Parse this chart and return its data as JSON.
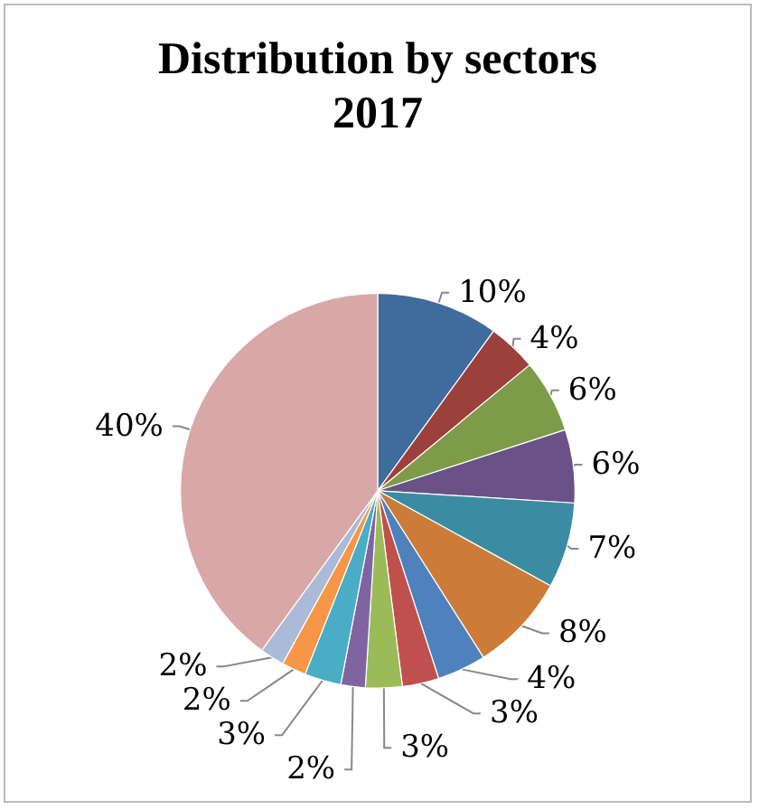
{
  "chart_data": {
    "type": "pie",
    "title": "Distribution by sectors\n2017",
    "categories": [
      null,
      null,
      null,
      null,
      null,
      null,
      null,
      null,
      null,
      null,
      null,
      null,
      null,
      null
    ],
    "values": [
      10,
      4,
      6,
      6,
      7,
      8,
      4,
      3,
      3,
      2,
      3,
      2,
      2,
      40
    ],
    "colors": [
      "#3f6b9d",
      "#9c403c",
      "#7e9b4a",
      "#6a5187",
      "#3b8ca3",
      "#cc7c38",
      "#4f81bd",
      "#c0504d",
      "#9bbb59",
      "#8064a2",
      "#4bacc6",
      "#f79646",
      "#aabad7",
      "#d8a7a7"
    ],
    "value_labels": [
      "10%",
      "4%",
      "6%",
      "6%",
      "7%",
      "8%",
      "4%",
      "3%",
      "3%",
      "2%",
      "3%",
      "2%",
      "2%",
      "40%"
    ]
  }
}
